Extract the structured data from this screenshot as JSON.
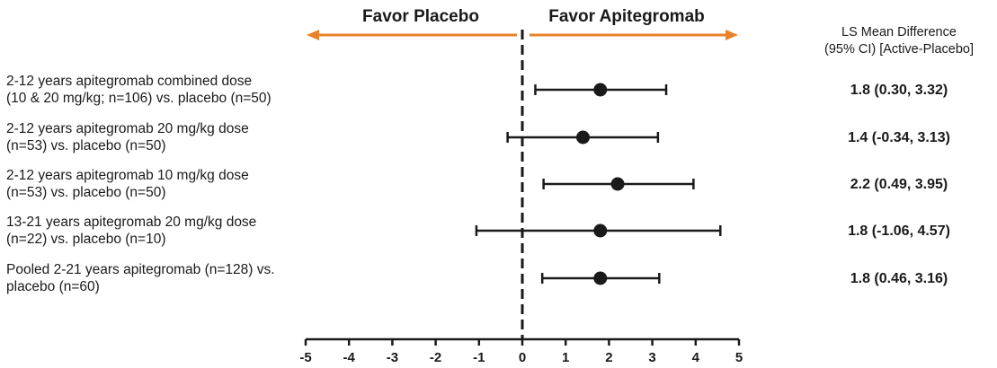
{
  "chart_data": {
    "type": "forest",
    "favor_left": "Favor Placebo",
    "favor_right": "Favor Apitegromab",
    "column_header": [
      "LS Mean Difference",
      "(95% CI) [Active-Placebo]"
    ],
    "xlim": [
      -5,
      5
    ],
    "xticks": [
      -5,
      -4,
      -3,
      -2,
      -1,
      0,
      1,
      2,
      3,
      4,
      5
    ],
    "reference_line": 0,
    "colors": {
      "arrow": "#e8822a",
      "marker": "#1a1a1a"
    },
    "rows": [
      {
        "label": [
          "2-12 years apitegromab combined dose",
          "(10 & 20 mg/kg; n=106) vs. placebo (n=50)"
        ],
        "estimate": 1.8,
        "lower": 0.3,
        "upper": 3.32,
        "ci_text": "1.8 (0.30, 3.32)"
      },
      {
        "label": [
          "2-12 years apitegromab 20 mg/kg dose",
          "(n=53) vs. placebo (n=50)"
        ],
        "estimate": 1.4,
        "lower": -0.34,
        "upper": 3.13,
        "ci_text": "1.4 (-0.34, 3.13)"
      },
      {
        "label": [
          "2-12 years apitegromab 10 mg/kg dose",
          "(n=53) vs. placebo (n=50)"
        ],
        "estimate": 2.2,
        "lower": 0.49,
        "upper": 3.95,
        "ci_text": "2.2 (0.49, 3.95)"
      },
      {
        "label": [
          "13-21 years apitegromab 20 mg/kg dose",
          "(n=22) vs. placebo (n=10)"
        ],
        "estimate": 1.8,
        "lower": -1.06,
        "upper": 4.57,
        "ci_text": "1.8 (-1.06, 4.57)"
      },
      {
        "label": [
          "Pooled 2-21 years apitegromab (n=128) vs.",
          "placebo (n=60)"
        ],
        "estimate": 1.8,
        "lower": 0.46,
        "upper": 3.16,
        "ci_text": "1.8 (0.46, 3.16)"
      }
    ]
  }
}
